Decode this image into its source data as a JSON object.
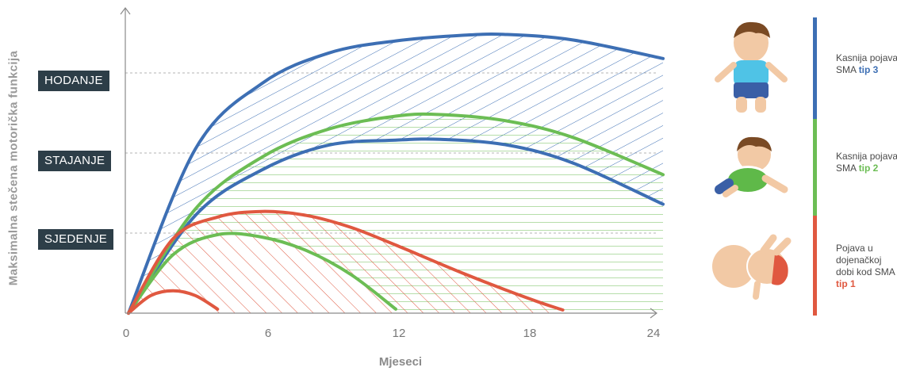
{
  "chart_data": {
    "type": "area",
    "ylabel": "Maksimalna stečena motorička funkcija",
    "xlabel": "Mjeseci",
    "x_ticks": [
      "0",
      "6",
      "12",
      "18",
      "24"
    ],
    "xlim": [
      0,
      24
    ],
    "milestones": [
      {
        "label": "HODANJE",
        "level": 3
      },
      {
        "label": "STAJANJE",
        "level": 2
      },
      {
        "label": "SJEDENJE",
        "level": 1
      }
    ],
    "series": [
      {
        "name": "Kasnija pojava SMA tip 3",
        "color": "#3d6fb4",
        "upper": [
          [
            0,
            0
          ],
          [
            3,
            2.05
          ],
          [
            6,
            2.87
          ],
          [
            9,
            3.25
          ],
          [
            12,
            3.4
          ],
          [
            15,
            3.47
          ],
          [
            17,
            3.48
          ],
          [
            20,
            3.41
          ],
          [
            24,
            3.18
          ]
        ],
        "lower": [
          [
            0,
            0
          ],
          [
            3,
            1.22
          ],
          [
            6,
            1.79
          ],
          [
            9,
            2.1
          ],
          [
            12,
            2.16
          ],
          [
            14,
            2.17
          ],
          [
            17,
            2.1
          ],
          [
            20,
            1.87
          ],
          [
            24,
            1.36
          ]
        ]
      },
      {
        "name": "Kasnija pojava SMA tip 2",
        "color": "#6cbd54",
        "upper": [
          [
            0,
            0
          ],
          [
            3,
            1.3
          ],
          [
            6,
            1.95
          ],
          [
            9,
            2.3
          ],
          [
            12,
            2.46
          ],
          [
            14,
            2.48
          ],
          [
            17,
            2.4
          ],
          [
            20,
            2.19
          ],
          [
            24,
            1.73
          ]
        ],
        "lower": [
          [
            0,
            0
          ],
          [
            2,
            0.73
          ],
          [
            4,
            0.98
          ],
          [
            6,
            0.95
          ],
          [
            8,
            0.78
          ],
          [
            10,
            0.48
          ],
          [
            12,
            0.05
          ]
        ]
      },
      {
        "name": "Pojava u dojenačkoj dobi kod SMA tip 1",
        "color": "#e05840",
        "upper": [
          [
            0,
            0
          ],
          [
            2,
            0.93
          ],
          [
            4,
            1.2
          ],
          [
            6,
            1.27
          ],
          [
            8,
            1.22
          ],
          [
            10,
            1.07
          ],
          [
            12,
            0.85
          ],
          [
            15,
            0.5
          ],
          [
            18,
            0.18
          ],
          [
            19.5,
            0.04
          ]
        ],
        "lower": [
          [
            0,
            0
          ],
          [
            1,
            0.22
          ],
          [
            2,
            0.28
          ],
          [
            3,
            0.22
          ],
          [
            4,
            0.05
          ]
        ]
      }
    ]
  },
  "legend": [
    {
      "text": "Kasnija pojava SMA",
      "bold": "tip 3",
      "color": "#3d6fb4"
    },
    {
      "text": "Kasnija pojava SMA",
      "bold": "tip 2",
      "color": "#6cbd54"
    },
    {
      "text": "Pojava u dojenačkoj dobi kod SMA",
      "bold": "tip 1",
      "color": "#e05840"
    }
  ],
  "icons": [
    "standing-toddler-icon",
    "crawling-baby-icon",
    "lying-infant-icon"
  ]
}
